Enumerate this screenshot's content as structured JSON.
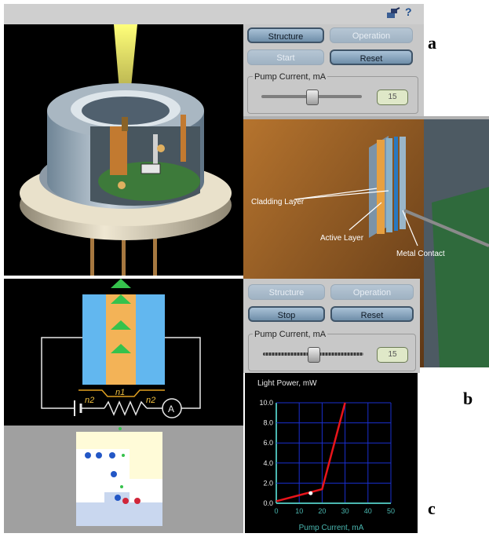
{
  "toolbar": {
    "help_label": "?",
    "network_icon": "network-icon"
  },
  "panel_a": {
    "structure_label": "Structure",
    "operation_label": "Operation",
    "start_label": "Start",
    "reset_label": "Reset",
    "pump_label": "Pump Current, mA",
    "pump_value": "15",
    "slider_level": 0.5
  },
  "panel_b": {
    "cladding_label": "Cladding Layer",
    "active_label": "Active Layer",
    "metal_label": "Metal Contact"
  },
  "panel_c": {
    "structure_label": "Structure",
    "operation_label": "Operation",
    "stop_label": "Stop",
    "reset_label": "Reset",
    "pump_label": "Pump Current, mA",
    "pump_value": "15",
    "slider_level": 0.5,
    "circuit": {
      "n_left": "n2",
      "n_mid": "n1",
      "n_right": "n2",
      "meter": "A"
    }
  },
  "figure_letters": {
    "a": "a",
    "b": "b",
    "c": "c"
  },
  "chart_data": {
    "type": "line",
    "title": "Light Power, mW",
    "xlabel": "Pump Current, mA",
    "ylabel": "",
    "xlim": [
      0,
      50
    ],
    "ylim": [
      0,
      10
    ],
    "x_ticks": [
      "0",
      "10",
      "20",
      "30",
      "40",
      "50"
    ],
    "y_ticks": [
      "0.0",
      "2.0",
      "4.0",
      "6.0",
      "8.0",
      "10.0"
    ],
    "grid": true,
    "series": [
      {
        "x": [
          0,
          20,
          30
        ],
        "y": [
          0.2,
          1.4,
          10.0
        ]
      }
    ],
    "marker": {
      "x": 15,
      "y": 1.0
    },
    "colors": {
      "background": "#000000",
      "grid": "#1a2fd0",
      "axis": "#4ab7b0",
      "line": "#e8141b",
      "text": "#e8e8e8",
      "marker": "#ffffff"
    }
  }
}
